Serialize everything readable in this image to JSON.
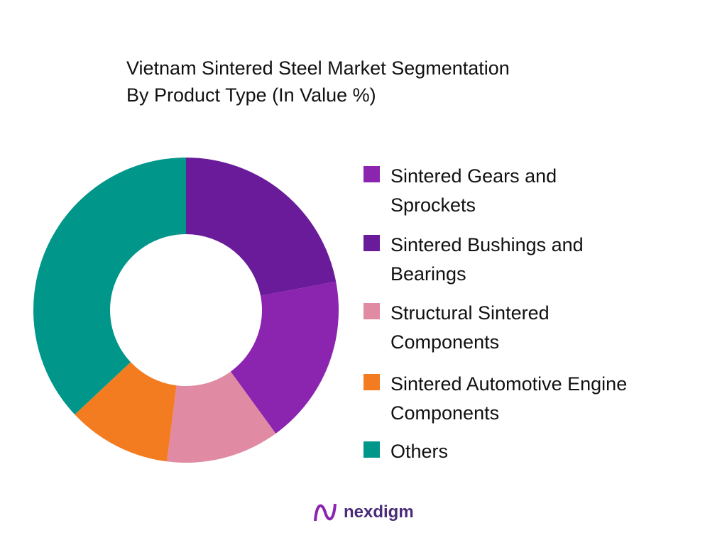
{
  "chart_data": {
    "type": "donut",
    "title": "Vietnam Sintered Steel Market Segmentation",
    "subtitle": "By Product Type (In Value %)",
    "categories": [
      "Sintered Gears and Sprockets",
      "Sintered Bushings and Bearings",
      "Structural Sintered Components",
      "Sintered Automotive Engine Components",
      "Others"
    ],
    "values": [
      18,
      22,
      12,
      11,
      37
    ],
    "colors": [
      "#8B24AF",
      "#6A1B9A",
      "#E08AA3",
      "#F47C20",
      "#00968A"
    ],
    "legend": "right"
  },
  "brand": "nexdigm"
}
